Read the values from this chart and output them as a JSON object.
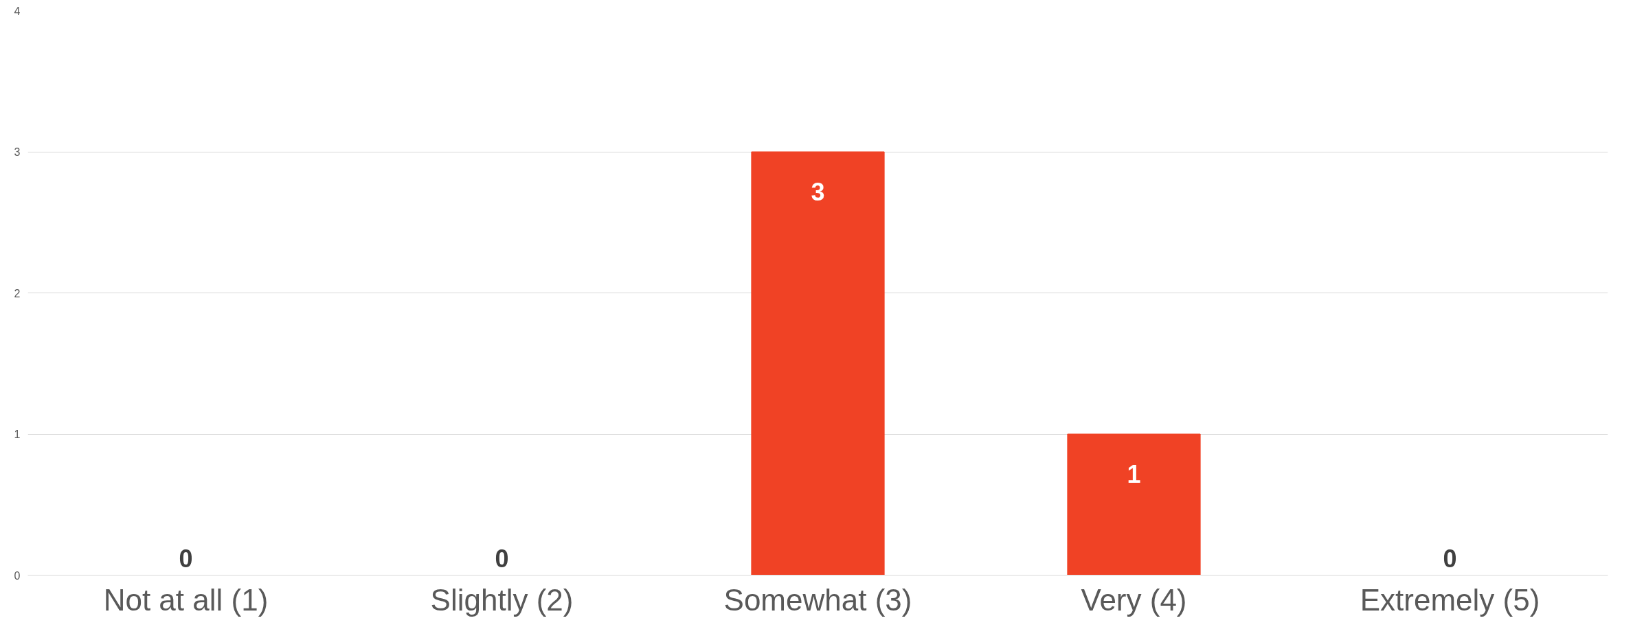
{
  "chart_data": {
    "type": "bar",
    "categories": [
      "Not at all (1)",
      "Slightly (2)",
      "Somewhat (3)",
      "Very (4)",
      "Extremely (5)"
    ],
    "values": [
      0,
      0,
      3,
      1,
      0
    ],
    "color": "#f04225",
    "ylim": [
      0,
      4
    ],
    "yticks": [
      0,
      1,
      2,
      3,
      4
    ],
    "grid": "y",
    "data_labels": true
  }
}
